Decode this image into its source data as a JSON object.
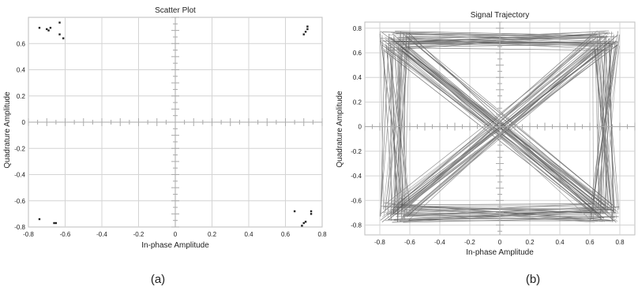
{
  "captions": {
    "left": "(a)",
    "right": "(b)"
  },
  "chart_data": [
    {
      "type": "scatter",
      "title": "Scatter Plot",
      "xlabel": "In-phase Amplitude",
      "ylabel": "Quadrature Amplitude",
      "xlim": [
        -0.8,
        0.8
      ],
      "ylim": [
        -0.8,
        0.8
      ],
      "xticks": [
        "-0.8",
        "-0.6",
        "-0.4",
        "-0.2",
        "0",
        "0.2",
        "0.4",
        "0.6",
        "0.8"
      ],
      "yticks": [
        "0.6",
        "0.4",
        "0.2",
        "0",
        "-0.2",
        "-0.4",
        "-0.6",
        "-0.8"
      ],
      "grid": true,
      "colors": {
        "marker": "#222222",
        "grid": "#d4d4d4",
        "axis": "#aaaaaa"
      },
      "points": [
        [
          -0.74,
          0.72
        ],
        [
          -0.7,
          0.71
        ],
        [
          -0.69,
          0.7
        ],
        [
          -0.68,
          0.72
        ],
        [
          -0.63,
          0.76
        ],
        [
          -0.63,
          0.67
        ],
        [
          -0.61,
          0.64
        ],
        [
          0.72,
          0.73
        ],
        [
          0.72,
          0.71
        ],
        [
          0.71,
          0.69
        ],
        [
          0.7,
          0.67
        ],
        [
          -0.74,
          -0.74
        ],
        [
          -0.66,
          -0.77
        ],
        [
          -0.65,
          -0.77
        ],
        [
          0.65,
          -0.68
        ],
        [
          0.7,
          -0.77
        ],
        [
          0.71,
          -0.76
        ],
        [
          0.74,
          -0.68
        ],
        [
          0.74,
          -0.7
        ],
        [
          0.69,
          -0.79
        ]
      ]
    },
    {
      "type": "line",
      "title": "Signal Trajectory",
      "xlabel": "In-phase Amplitude",
      "ylabel": "Quadrature Amplitude",
      "xlim": [
        -0.9,
        0.9
      ],
      "ylim": [
        -0.88,
        0.85
      ],
      "xticks": [
        "-0.8",
        "-0.6",
        "-0.4",
        "-0.2",
        "0",
        "0.2",
        "0.4",
        "0.6",
        "0.8"
      ],
      "yticks": [
        "0.8",
        "0.6",
        "0.4",
        "0.2",
        "0",
        "-0.2",
        "-0.4",
        "-0.6",
        "-0.8"
      ],
      "grid": true,
      "colors": {
        "line": "#555555",
        "grid": "#d4d4d4",
        "axis": "#aaaaaa"
      },
      "constellation": [
        [
          -0.7,
          0.7
        ],
        [
          0.7,
          0.7
        ],
        [
          0.7,
          -0.7
        ],
        [
          -0.7,
          -0.7
        ]
      ]
    }
  ]
}
